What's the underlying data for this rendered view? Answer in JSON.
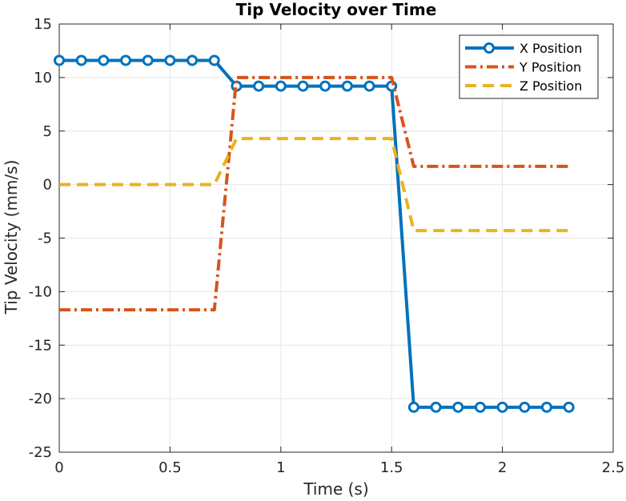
{
  "chart_data": {
    "type": "line",
    "title": "Tip Velocity over Time",
    "xlabel": "Time (s)",
    "ylabel": "Tip Velocity (mm/s)",
    "xlim": [
      0,
      2.5
    ],
    "ylim": [
      -25,
      15
    ],
    "xticks": [
      0,
      0.5,
      1,
      1.5,
      2,
      2.5
    ],
    "xtick_labels": [
      "0",
      "0.5",
      "1",
      "1.5",
      "2",
      "2.5"
    ],
    "yticks": [
      -25,
      -20,
      -15,
      -10,
      -5,
      0,
      5,
      10,
      15
    ],
    "ytick_labels": [
      "-25",
      "-20",
      "-15",
      "-10",
      "-5",
      "0",
      "5",
      "10",
      "15"
    ],
    "grid": true,
    "legend_position": "top-right",
    "x": [
      0,
      0.1,
      0.2,
      0.3,
      0.4,
      0.5,
      0.6,
      0.7,
      0.8,
      0.9,
      1.0,
      1.1,
      1.2,
      1.3,
      1.4,
      1.5,
      1.6,
      1.7,
      1.8,
      1.9,
      2.0,
      2.1,
      2.2,
      2.3
    ],
    "series": [
      {
        "name": "X Position",
        "color": "#0072BD",
        "style": "solid-circle-markers",
        "values": [
          11.6,
          11.6,
          11.6,
          11.6,
          11.6,
          11.6,
          11.6,
          11.6,
          9.2,
          9.2,
          9.2,
          9.2,
          9.2,
          9.2,
          9.2,
          9.2,
          -20.8,
          -20.8,
          -20.8,
          -20.8,
          -20.8,
          -20.8,
          -20.8,
          -20.8
        ]
      },
      {
        "name": "Y Position",
        "color": "#D95319",
        "style": "dash-dot",
        "values": [
          -11.7,
          -11.7,
          -11.7,
          -11.7,
          -11.7,
          -11.7,
          -11.7,
          -11.7,
          10.0,
          10.0,
          10.0,
          10.0,
          10.0,
          10.0,
          10.0,
          10.0,
          1.7,
          1.7,
          1.7,
          1.7,
          1.7,
          1.7,
          1.7,
          1.7
        ]
      },
      {
        "name": "Z Position",
        "color": "#EDB120",
        "style": "dashed",
        "values": [
          0,
          0,
          0,
          0,
          0,
          0,
          0,
          0,
          4.3,
          4.3,
          4.3,
          4.3,
          4.3,
          4.3,
          4.3,
          4.3,
          -4.3,
          -4.3,
          -4.3,
          -4.3,
          -4.3,
          -4.3,
          -4.3,
          -4.3
        ]
      }
    ]
  }
}
